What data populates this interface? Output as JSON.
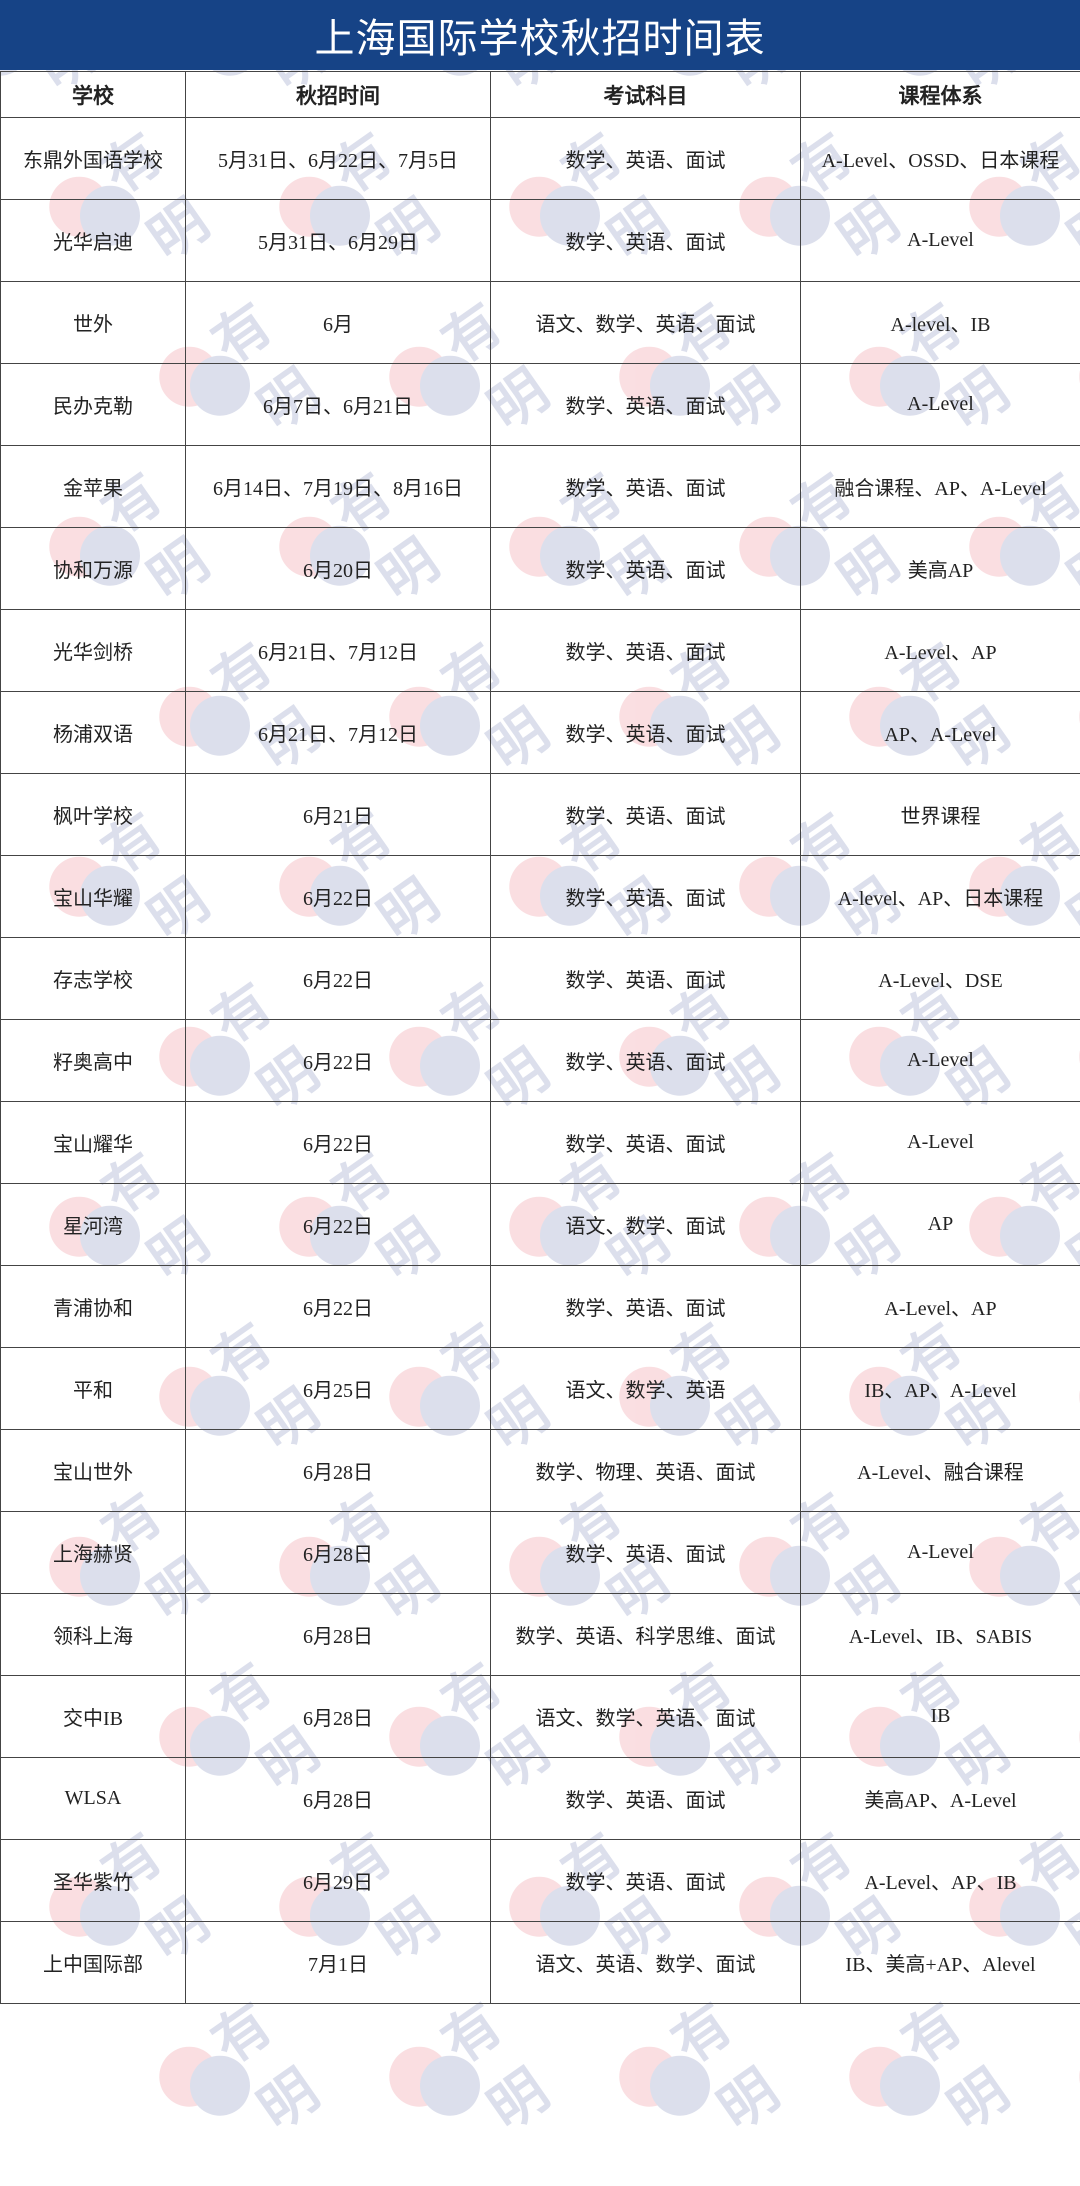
{
  "title": "上海国际学校秋招时间表",
  "watermark": "有明 unum",
  "colors": {
    "title_bg": "#164386",
    "title_text": "#ffffff",
    "watermark_red": "#e23a4a",
    "watermark_blue": "#2a3f8f"
  },
  "headers": [
    "学校",
    "秋招时间",
    "考试科目",
    "课程体系"
  ],
  "rows": [
    [
      "东鼎外国语学校",
      "5月31日、6月22日、7月5日",
      "数学、英语、面试",
      "A-Level、OSSD、日本课程"
    ],
    [
      "光华启迪",
      "5月31日、6月29日",
      "数学、英语、面试",
      "A-Level"
    ],
    [
      "世外",
      "6月",
      "语文、数学、英语、面试",
      "A-level、IB"
    ],
    [
      "民办克勒",
      "6月7日、6月21日",
      "数学、英语、面试",
      "A-Level"
    ],
    [
      "金苹果",
      "6月14日、7月19日、8月16日",
      "数学、英语、面试",
      "融合课程、AP、A-Level"
    ],
    [
      "协和万源",
      "6月20日",
      "数学、英语、面试",
      "美高AP"
    ],
    [
      "光华剑桥",
      "6月21日、7月12日",
      "数学、英语、面试",
      "A-Level、AP"
    ],
    [
      "杨浦双语",
      "6月21日、7月12日",
      "数学、英语、面试",
      "AP、A-Level"
    ],
    [
      "枫叶学校",
      "6月21日",
      "数学、英语、面试",
      "世界课程"
    ],
    [
      "宝山华耀",
      "6月22日",
      "数学、英语、面试",
      "A-level、AP、日本课程"
    ],
    [
      "存志学校",
      "6月22日",
      "数学、英语、面试",
      "A-Level、DSE"
    ],
    [
      "籽奥高中",
      "6月22日",
      "数学、英语、面试",
      "A-Level"
    ],
    [
      "宝山耀华",
      "6月22日",
      "数学、英语、面试",
      "A-Level"
    ],
    [
      "星河湾",
      "6月22日",
      "语文、数学、面试",
      "AP"
    ],
    [
      "青浦协和",
      "6月22日",
      "数学、英语、面试",
      "A-Level、AP"
    ],
    [
      "平和",
      "6月25日",
      "语文、数学、英语",
      "IB、AP、A-Level"
    ],
    [
      "宝山世外",
      "6月28日",
      "数学、物理、英语、面试",
      "A-Level、融合课程"
    ],
    [
      "上海赫贤",
      "6月28日",
      "数学、英语、面试",
      "A-Level"
    ],
    [
      "领科上海",
      "6月28日",
      "数学、英语、科学思维、面试",
      "A-Level、IB、SABIS"
    ],
    [
      "交中IB",
      "6月28日",
      "语文、数学、英语、面试",
      "IB"
    ],
    [
      "WLSA",
      "6月28日",
      "数学、英语、面试",
      "美高AP、A-Level"
    ],
    [
      "圣华紫竹",
      "6月29日",
      "数学、英语、面试",
      "A-Level、AP、IB"
    ],
    [
      "上中国际部",
      "7月1日",
      "语文、英语、数学、面试",
      "IB、美高+AP、Alevel"
    ]
  ]
}
